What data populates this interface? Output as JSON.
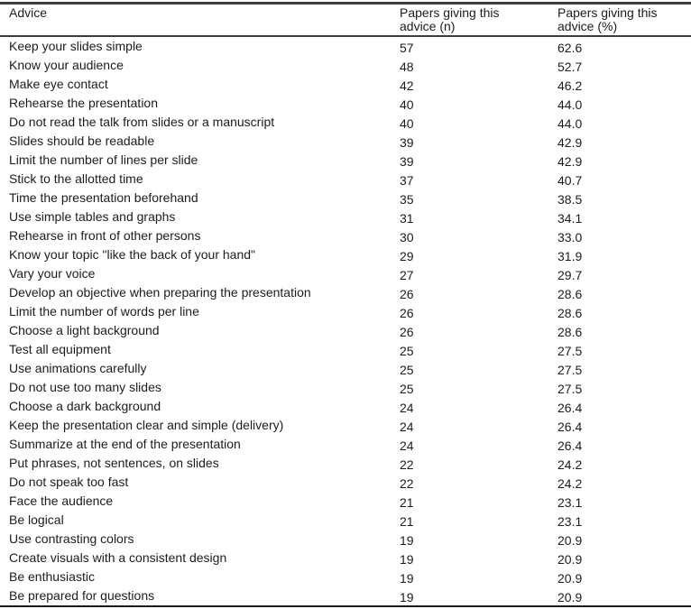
{
  "table": {
    "columns": [
      "Advice",
      "Papers giving this advice (n)",
      "Papers giving this advice (%)"
    ],
    "rows": [
      {
        "advice": "Keep your slides simple",
        "n": "57",
        "pct": "62.6"
      },
      {
        "advice": "Know your audience",
        "n": "48",
        "pct": "52.7"
      },
      {
        "advice": "Make eye contact",
        "n": "42",
        "pct": "46.2"
      },
      {
        "advice": "Rehearse the presentation",
        "n": "40",
        "pct": "44.0"
      },
      {
        "advice": "Do not read the talk from slides or a manuscript",
        "n": "40",
        "pct": "44.0"
      },
      {
        "advice": "Slides should be readable",
        "n": "39",
        "pct": "42.9"
      },
      {
        "advice": "Limit the number of lines per slide",
        "n": "39",
        "pct": "42.9"
      },
      {
        "advice": "Stick to the allotted time",
        "n": "37",
        "pct": "40.7"
      },
      {
        "advice": "Time the presentation beforehand",
        "n": "35",
        "pct": "38.5"
      },
      {
        "advice": "Use simple tables and graphs",
        "n": "31",
        "pct": "34.1"
      },
      {
        "advice": "Rehearse in front of other persons",
        "n": "30",
        "pct": "33.0"
      },
      {
        "advice": "Know your topic \"like the back of your hand\"",
        "n": "29",
        "pct": "31.9"
      },
      {
        "advice": "Vary your voice",
        "n": "27",
        "pct": "29.7"
      },
      {
        "advice": "Develop an objective when preparing the presentation",
        "n": "26",
        "pct": "28.6"
      },
      {
        "advice": "Limit the number of words per line",
        "n": "26",
        "pct": "28.6"
      },
      {
        "advice": "Choose a light background",
        "n": "26",
        "pct": "28.6"
      },
      {
        "advice": "Test all equipment",
        "n": "25",
        "pct": "27.5"
      },
      {
        "advice": "Use animations carefully",
        "n": "25",
        "pct": "27.5"
      },
      {
        "advice": "Do not use too many slides",
        "n": "25",
        "pct": "27.5"
      },
      {
        "advice": "Choose a dark background",
        "n": "24",
        "pct": "26.4"
      },
      {
        "advice": "Keep the presentation clear and simple (delivery)",
        "n": "24",
        "pct": "26.4"
      },
      {
        "advice": "Summarize at the end of the presentation",
        "n": "24",
        "pct": "26.4"
      },
      {
        "advice": "Put phrases, not sentences, on slides",
        "n": "22",
        "pct": "24.2"
      },
      {
        "advice": "Do not speak too fast",
        "n": "22",
        "pct": "24.2"
      },
      {
        "advice": "Face the audience",
        "n": "21",
        "pct": "23.1"
      },
      {
        "advice": "Be logical",
        "n": "21",
        "pct": "23.1"
      },
      {
        "advice": "Use contrasting colors",
        "n": "19",
        "pct": "20.9"
      },
      {
        "advice": "Create visuals with a consistent design",
        "n": "19",
        "pct": "20.9"
      },
      {
        "advice": "Be enthusiastic",
        "n": "19",
        "pct": "20.9"
      },
      {
        "advice": "Be prepared for questions",
        "n": "19",
        "pct": "20.9"
      }
    ]
  }
}
